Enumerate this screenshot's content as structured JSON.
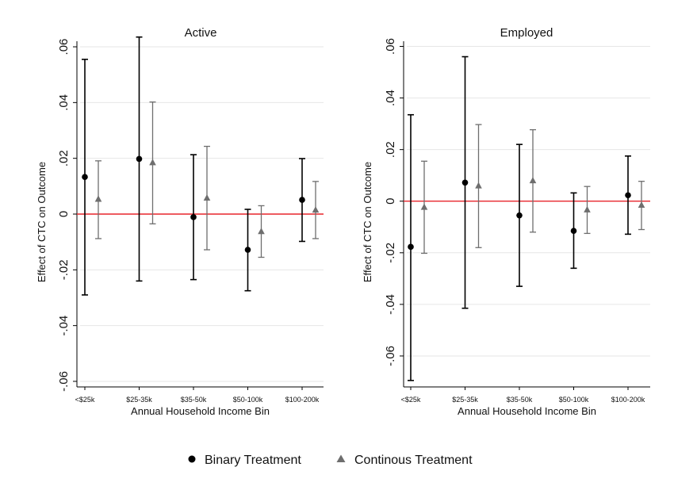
{
  "colors": {
    "binary": "#000000",
    "continuous": "#6e6e6e",
    "zero_line": "#e8252b",
    "grid": "#e6e6e6",
    "axis": "#000000"
  },
  "legend": {
    "binary_label": "Binary Treatment",
    "continuous_label": "Continous Treatment",
    "binary_marker": "circle",
    "continuous_marker": "triangle"
  },
  "chart_data": [
    {
      "type": "scatter",
      "title": "Active",
      "xlabel": "Annual Household Income Bin",
      "ylabel": "Effect of CTC on Outcome",
      "ylim": [
        -0.062,
        0.062
      ],
      "yticks": [
        -0.06,
        -0.04,
        -0.02,
        0,
        0.02,
        0.04,
        0.06
      ],
      "ytick_labels": [
        "-.06",
        "-.04",
        "-.02",
        "0",
        ".02",
        ".04",
        ".06"
      ],
      "categories": [
        "<$25k",
        "$25-35k",
        "$35-50k",
        "$50-100k",
        "$100-200k"
      ],
      "grid": true,
      "reference_line": 0,
      "series": [
        {
          "name": "Binary Treatment",
          "marker": "circle",
          "estimates": [
            0.0133,
            0.0198,
            -0.0011,
            -0.0128,
            0.0051
          ],
          "ci_low": [
            -0.029,
            -0.024,
            -0.0235,
            -0.0275,
            -0.0098
          ],
          "ci_high": [
            0.0555,
            0.0635,
            0.0213,
            0.0017,
            0.0199
          ]
        },
        {
          "name": "Continous Treatment",
          "marker": "triangle",
          "estimates": [
            0.0054,
            0.0185,
            0.0058,
            -0.0062,
            0.0015
          ],
          "ci_low": [
            -0.0088,
            -0.0035,
            -0.0128,
            -0.0155,
            -0.0088
          ],
          "ci_high": [
            0.0191,
            0.0402,
            0.0243,
            0.003,
            0.0117
          ]
        }
      ]
    },
    {
      "type": "scatter",
      "title": "Employed",
      "xlabel": "Annual Household Income Bin",
      "ylabel": "Effect of CTC on Outcome",
      "ylim": [
        -0.072,
        0.062
      ],
      "yticks": [
        -0.06,
        -0.04,
        -0.02,
        0,
        0.02,
        0.04,
        0.06
      ],
      "ytick_labels": [
        "-.06",
        "-.04",
        "-.02",
        "0",
        ".02",
        ".04",
        ".06"
      ],
      "categories": [
        "<$25k",
        "$25-35k",
        "$35-50k",
        "$50-100k",
        "$100-200k"
      ],
      "grid": true,
      "reference_line": 0,
      "series": [
        {
          "name": "Binary Treatment",
          "marker": "circle",
          "estimates": [
            -0.0177,
            0.0072,
            -0.0055,
            -0.0115,
            0.0023
          ],
          "ci_low": [
            -0.0695,
            -0.0415,
            -0.033,
            -0.026,
            -0.0128
          ],
          "ci_high": [
            0.0335,
            0.056,
            0.022,
            0.0032,
            0.0175
          ]
        },
        {
          "name": "Continous Treatment",
          "marker": "triangle",
          "estimates": [
            -0.0023,
            0.006,
            0.008,
            -0.0033,
            -0.0015
          ],
          "ci_low": [
            -0.0202,
            -0.018,
            -0.012,
            -0.0125,
            -0.011
          ],
          "ci_high": [
            0.0155,
            0.0297,
            0.0277,
            0.0057,
            0.0077
          ]
        }
      ]
    }
  ]
}
